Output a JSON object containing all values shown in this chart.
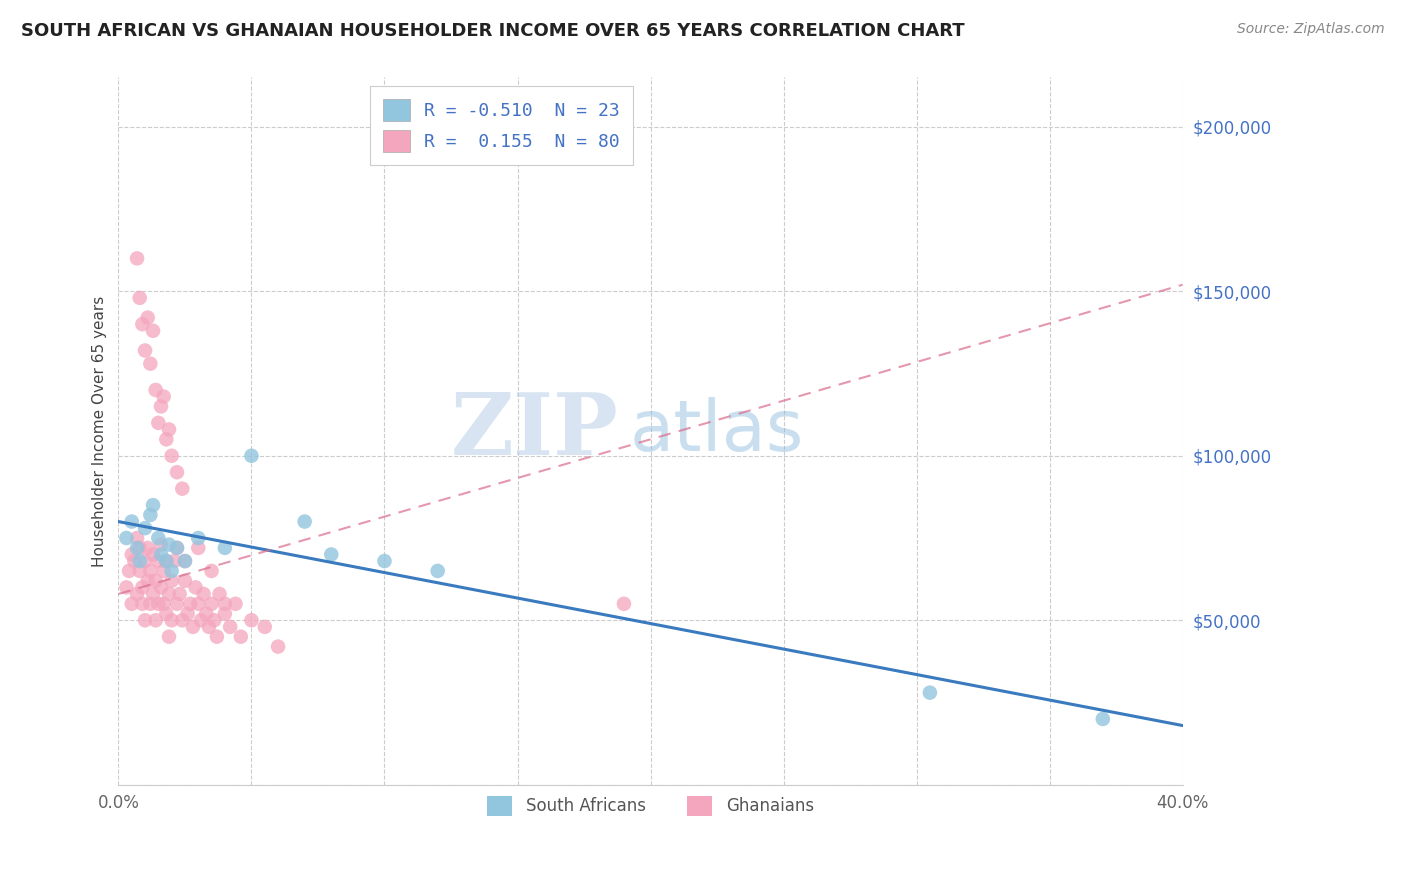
{
  "title": "SOUTH AFRICAN VS GHANAIAN HOUSEHOLDER INCOME OVER 65 YEARS CORRELATION CHART",
  "source": "Source: ZipAtlas.com",
  "ylabel": "Householder Income Over 65 years",
  "watermark_zip": "ZIP",
  "watermark_atlas": "atlas",
  "xlim": [
    0.0,
    0.4
  ],
  "ylim": [
    0,
    215000
  ],
  "yticks": [
    0,
    50000,
    100000,
    150000,
    200000
  ],
  "ytick_labels": [
    "",
    "$50,000",
    "$100,000",
    "$150,000",
    "$200,000"
  ],
  "xticks": [
    0.0,
    0.05,
    0.1,
    0.15,
    0.2,
    0.25,
    0.3,
    0.35,
    0.4
  ],
  "xtick_labels": [
    "0.0%",
    "",
    "",
    "",
    "",
    "",
    "",
    "",
    "40.0%"
  ],
  "blue_R": -0.51,
  "blue_N": 23,
  "pink_R": 0.155,
  "pink_N": 80,
  "blue_color": "#92c5de",
  "pink_color": "#f4a6be",
  "blue_line_color": "#3a7abf",
  "pink_line_color": "#d96b8a",
  "legend_label_blue": "South Africans",
  "legend_label_pink": "Ghanaians",
  "blue_line_x0": 0.0,
  "blue_line_y0": 80000,
  "blue_line_x1": 0.4,
  "blue_line_y1": 18000,
  "pink_line_x0": 0.0,
  "pink_line_y0": 58000,
  "pink_line_x1": 0.4,
  "pink_line_y1": 152000,
  "blue_scatter_x": [
    0.003,
    0.005,
    0.007,
    0.008,
    0.01,
    0.012,
    0.013,
    0.015,
    0.016,
    0.018,
    0.019,
    0.02,
    0.022,
    0.025,
    0.03,
    0.04,
    0.05,
    0.07,
    0.08,
    0.1,
    0.12,
    0.305,
    0.37
  ],
  "blue_scatter_y": [
    75000,
    80000,
    72000,
    68000,
    78000,
    82000,
    85000,
    75000,
    70000,
    68000,
    73000,
    65000,
    72000,
    68000,
    75000,
    72000,
    100000,
    80000,
    70000,
    68000,
    65000,
    28000,
    20000
  ],
  "pink_scatter_x": [
    0.003,
    0.004,
    0.005,
    0.005,
    0.006,
    0.007,
    0.007,
    0.008,
    0.008,
    0.009,
    0.009,
    0.01,
    0.01,
    0.011,
    0.011,
    0.012,
    0.012,
    0.013,
    0.013,
    0.014,
    0.014,
    0.015,
    0.015,
    0.016,
    0.016,
    0.017,
    0.017,
    0.018,
    0.018,
    0.019,
    0.019,
    0.02,
    0.02,
    0.021,
    0.022,
    0.022,
    0.023,
    0.024,
    0.025,
    0.025,
    0.026,
    0.027,
    0.028,
    0.029,
    0.03,
    0.031,
    0.032,
    0.033,
    0.034,
    0.035,
    0.036,
    0.037,
    0.038,
    0.04,
    0.042,
    0.044,
    0.046,
    0.05,
    0.055,
    0.06,
    0.007,
    0.008,
    0.009,
    0.01,
    0.011,
    0.012,
    0.013,
    0.014,
    0.015,
    0.016,
    0.017,
    0.018,
    0.019,
    0.02,
    0.022,
    0.024,
    0.03,
    0.035,
    0.04,
    0.19
  ],
  "pink_scatter_y": [
    60000,
    65000,
    70000,
    55000,
    68000,
    75000,
    58000,
    65000,
    72000,
    60000,
    55000,
    68000,
    50000,
    62000,
    72000,
    55000,
    65000,
    58000,
    70000,
    62000,
    50000,
    68000,
    55000,
    60000,
    73000,
    55000,
    65000,
    52000,
    68000,
    58000,
    45000,
    62000,
    50000,
    68000,
    55000,
    72000,
    58000,
    50000,
    62000,
    68000,
    52000,
    55000,
    48000,
    60000,
    55000,
    50000,
    58000,
    52000,
    48000,
    55000,
    50000,
    45000,
    58000,
    52000,
    48000,
    55000,
    45000,
    50000,
    48000,
    42000,
    160000,
    148000,
    140000,
    132000,
    142000,
    128000,
    138000,
    120000,
    110000,
    115000,
    118000,
    105000,
    108000,
    100000,
    95000,
    90000,
    72000,
    65000,
    55000,
    55000
  ]
}
